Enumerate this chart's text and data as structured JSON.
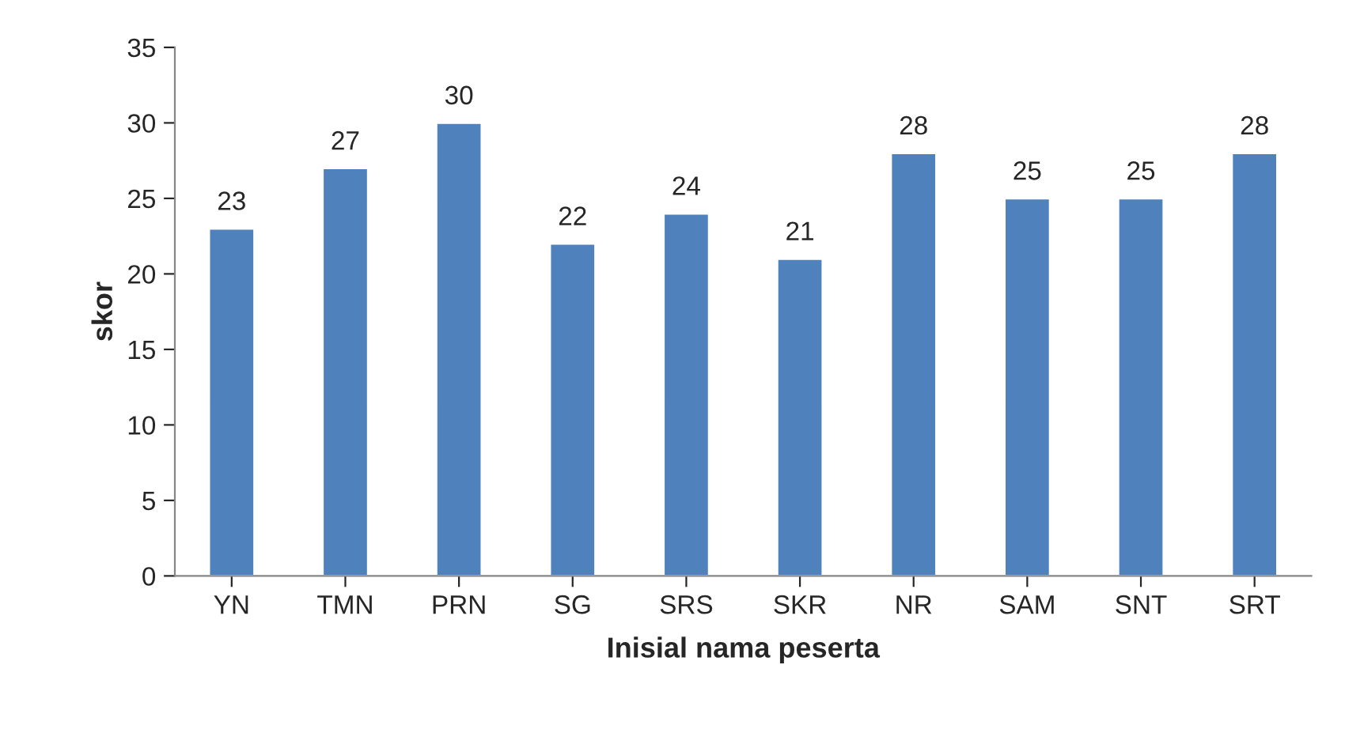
{
  "chart_data": {
    "type": "bar",
    "categories": [
      "YN",
      "TMN",
      "PRN",
      "SG",
      "SRS",
      "SKR",
      "NR",
      "SAM",
      "SNT",
      "SRT"
    ],
    "values": [
      23,
      27,
      30,
      22,
      24,
      21,
      28,
      25,
      25,
      28
    ],
    "color": "#4f81bd",
    "xlabel": "Inisial nama peserta",
    "ylabel": "skor",
    "ylim": [
      0,
      35
    ],
    "yticks": [
      0,
      5,
      10,
      15,
      20,
      25,
      30,
      35
    ],
    "data_labels": true,
    "grid": false,
    "legend": false
  }
}
